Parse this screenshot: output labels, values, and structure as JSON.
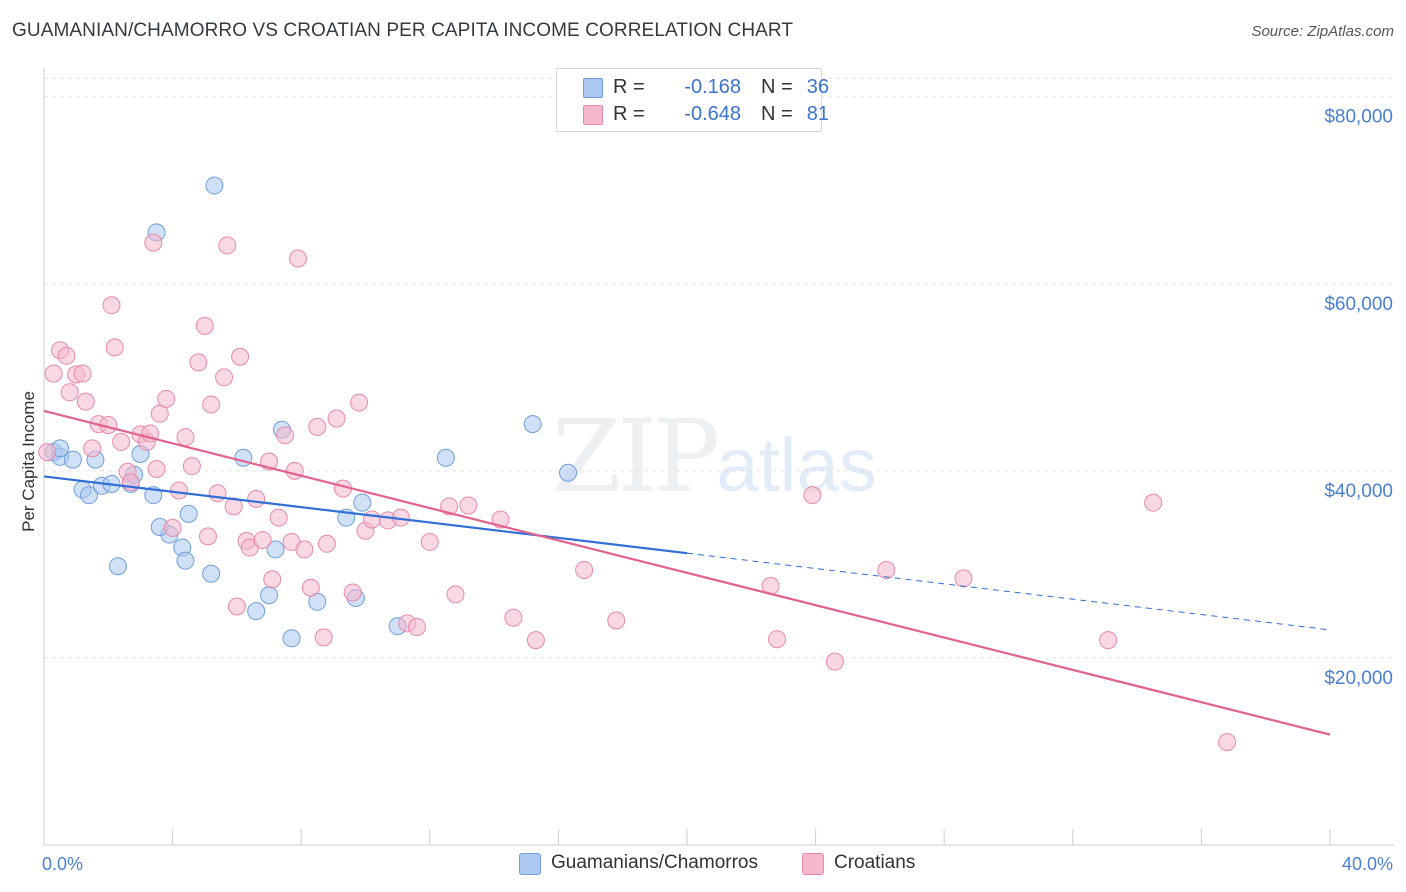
{
  "title": "GUAMANIAN/CHAMORRO VS CROATIAN PER CAPITA INCOME CORRELATION CHART",
  "source": "Source: ZipAtlas.com",
  "watermark": {
    "zip": "ZIP",
    "atlas": "atlas"
  },
  "legend": {
    "rows": [
      {
        "r_label": "R =",
        "r_value": "-0.168",
        "n_label": "N =",
        "n_value": "36",
        "color": "#aac8f0"
      },
      {
        "r_label": "R =",
        "r_value": "-0.648",
        "n_label": "N =",
        "n_value": "81",
        "color": "#f5b8cc"
      }
    ]
  },
  "bottom_legend": [
    {
      "label": "Guamanians/Chamorros",
      "color": "#aac8f0"
    },
    {
      "label": "Croatians",
      "color": "#f5b8cc"
    }
  ],
  "chart_data": {
    "type": "scatter",
    "title": "GUAMANIAN/CHAMORRO VS CROATIAN PER CAPITA INCOME CORRELATION CHART",
    "ylabel": "Per Capita Income",
    "xlabel": "",
    "xlim": [
      0,
      40
    ],
    "ylim": [
      0,
      82000
    ],
    "x_tick_labels": {
      "min": "0.0%",
      "max": "40.0%"
    },
    "y_ticks": [
      {
        "value": 20000,
        "label": "$20,000"
      },
      {
        "value": 40000,
        "label": "$40,000"
      },
      {
        "value": 60000,
        "label": "$60,000"
      },
      {
        "value": 80000,
        "label": "$80,000"
      }
    ],
    "grid": true,
    "legend_position": "top-center",
    "series": [
      {
        "name": "Guamanians/Chamorros",
        "color": "#aac8f0",
        "stroke": "#6f9fde",
        "line_color": "#2f6fd6",
        "trend": {
          "x_start": 0,
          "y_start": 39400,
          "x_solid_end": 20,
          "y_solid_end": 31200,
          "x_end": 40,
          "y_end": 23000
        },
        "points": [
          [
            0.3,
            42000
          ],
          [
            0.5,
            41500
          ],
          [
            0.9,
            41200
          ],
          [
            1.6,
            41200
          ],
          [
            1.2,
            38000
          ],
          [
            1.4,
            37400
          ],
          [
            1.8,
            38400
          ],
          [
            2.1,
            38600
          ],
          [
            2.8,
            39600
          ],
          [
            2.3,
            29800
          ],
          [
            3.0,
            41800
          ],
          [
            3.4,
            37400
          ],
          [
            3.9,
            33200
          ],
          [
            3.6,
            34000
          ],
          [
            4.3,
            31800
          ],
          [
            4.5,
            35400
          ],
          [
            4.4,
            30400
          ],
          [
            5.2,
            29000
          ],
          [
            5.3,
            70500
          ],
          [
            3.5,
            65500
          ],
          [
            6.2,
            41400
          ],
          [
            6.6,
            25000
          ],
          [
            7.0,
            26700
          ],
          [
            7.2,
            31600
          ],
          [
            7.4,
            44400
          ],
          [
            7.7,
            22100
          ],
          [
            8.5,
            26000
          ],
          [
            9.4,
            35000
          ],
          [
            9.7,
            26400
          ],
          [
            9.9,
            36600
          ],
          [
            11.0,
            23400
          ],
          [
            12.5,
            41400
          ],
          [
            15.2,
            45000
          ],
          [
            16.3,
            39800
          ],
          [
            2.7,
            38600
          ],
          [
            0.5,
            42400
          ]
        ]
      },
      {
        "name": "Croatians",
        "color": "#f5b8cc",
        "stroke": "#e889aa",
        "line_color": "#e2628e",
        "trend": {
          "x_start": 0,
          "y_start": 46400,
          "x_end": 40,
          "y_end": 11800
        },
        "points": [
          [
            0.3,
            50400
          ],
          [
            0.5,
            52900
          ],
          [
            0.7,
            52300
          ],
          [
            0.8,
            48400
          ],
          [
            1.0,
            50300
          ],
          [
            1.2,
            50400
          ],
          [
            1.3,
            47400
          ],
          [
            1.5,
            42400
          ],
          [
            1.7,
            45000
          ],
          [
            2.0,
            44900
          ],
          [
            2.1,
            57700
          ],
          [
            2.2,
            53200
          ],
          [
            2.4,
            43100
          ],
          [
            2.6,
            39900
          ],
          [
            2.7,
            38800
          ],
          [
            3.0,
            43900
          ],
          [
            3.2,
            43100
          ],
          [
            3.4,
            64400
          ],
          [
            3.5,
            40200
          ],
          [
            3.6,
            46100
          ],
          [
            3.8,
            47700
          ],
          [
            4.0,
            33900
          ],
          [
            4.2,
            37900
          ],
          [
            4.4,
            43600
          ],
          [
            4.6,
            40500
          ],
          [
            4.8,
            51600
          ],
          [
            5.0,
            55500
          ],
          [
            5.1,
            33000
          ],
          [
            5.2,
            47100
          ],
          [
            5.4,
            37600
          ],
          [
            5.6,
            50000
          ],
          [
            5.7,
            64100
          ],
          [
            5.9,
            36200
          ],
          [
            6.1,
            52200
          ],
          [
            6.3,
            32500
          ],
          [
            6.4,
            31800
          ],
          [
            6.6,
            37000
          ],
          [
            6.8,
            32600
          ],
          [
            7.0,
            41000
          ],
          [
            7.1,
            28400
          ],
          [
            7.3,
            35000
          ],
          [
            7.5,
            43800
          ],
          [
            7.7,
            32400
          ],
          [
            7.8,
            40000
          ],
          [
            7.9,
            62700
          ],
          [
            8.1,
            31600
          ],
          [
            8.3,
            27500
          ],
          [
            8.5,
            44700
          ],
          [
            8.7,
            22200
          ],
          [
            8.8,
            32200
          ],
          [
            9.1,
            45600
          ],
          [
            9.3,
            38100
          ],
          [
            9.6,
            27000
          ],
          [
            9.8,
            47300
          ],
          [
            10.0,
            33600
          ],
          [
            10.2,
            34800
          ],
          [
            10.7,
            34700
          ],
          [
            11.1,
            35000
          ],
          [
            11.3,
            23700
          ],
          [
            11.6,
            23300
          ],
          [
            12.0,
            32400
          ],
          [
            12.6,
            36200
          ],
          [
            12.8,
            26800
          ],
          [
            13.2,
            36300
          ],
          [
            14.2,
            34800
          ],
          [
            14.6,
            24300
          ],
          [
            15.3,
            21900
          ],
          [
            16.8,
            29400
          ],
          [
            17.8,
            24000
          ],
          [
            22.6,
            27700
          ],
          [
            22.8,
            22000
          ],
          [
            23.9,
            37400
          ],
          [
            24.6,
            19600
          ],
          [
            26.2,
            29400
          ],
          [
            28.6,
            28500
          ],
          [
            33.1,
            21900
          ],
          [
            34.5,
            36600
          ],
          [
            36.8,
            11000
          ],
          [
            0.1,
            42000
          ],
          [
            3.3,
            44000
          ],
          [
            6.0,
            25500
          ]
        ]
      }
    ]
  }
}
